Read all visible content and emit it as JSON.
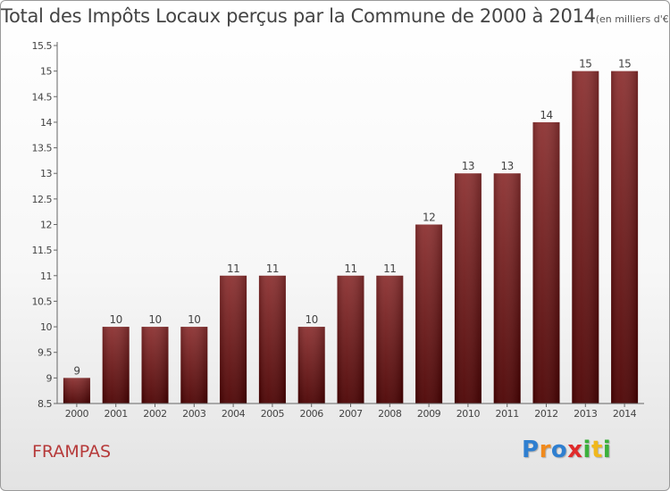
{
  "header": {
    "title": "Total des Impôts Locaux perçus par la Commune de 2000 à 2014",
    "unit": "(en milliers d'€)"
  },
  "commune": "FRAMPAS",
  "logo": {
    "text": "Proxiti",
    "letters": [
      {
        "ch": "P",
        "color": "#2f7fd0"
      },
      {
        "ch": "r",
        "color": "#f08a1c"
      },
      {
        "ch": "o",
        "color": "#2f7fd0"
      },
      {
        "ch": "x",
        "color": "#e02b2b"
      },
      {
        "ch": "i",
        "color": "#3bb03b"
      },
      {
        "ch": "t",
        "color": "#f0b81c"
      },
      {
        "ch": "i",
        "color": "#3bb03b"
      }
    ]
  },
  "colors": {
    "bar_top": "#8c3030",
    "bar_bottom": "#4a0000",
    "axis": "#666666",
    "grid": "#d0d0d0",
    "text": "#444444"
  },
  "chart_data": {
    "type": "bar",
    "categories": [
      "2000",
      "2001",
      "2002",
      "2003",
      "2004",
      "2005",
      "2006",
      "2007",
      "2008",
      "2009",
      "2010",
      "2011",
      "2012",
      "2013",
      "2014"
    ],
    "values": [
      9,
      10,
      10,
      10,
      11,
      11,
      10,
      11,
      11,
      12,
      13,
      13,
      14,
      15,
      15
    ],
    "data_labels": [
      "9",
      "10",
      "10",
      "10",
      "11",
      "11",
      "10",
      "11",
      "11",
      "12",
      "13",
      "13",
      "14",
      "15",
      "15"
    ],
    "title": "Total des Impôts Locaux perçus par la Commune de 2000 à 2014",
    "xlabel": "",
    "ylabel": "",
    "ylim": [
      8.5,
      15.5
    ],
    "yticks": [
      8.5,
      9,
      9.5,
      10,
      10.5,
      11,
      11.5,
      12,
      12.5,
      13,
      13.5,
      14,
      14.5,
      15,
      15.5
    ],
    "ytick_labels": [
      "8.5",
      "9",
      "9.5",
      "10",
      "10.5",
      "11",
      "11.5",
      "12",
      "12.5",
      "13",
      "13.5",
      "14",
      "14.5",
      "15",
      "15.5"
    ],
    "grid": false,
    "legend": "none"
  }
}
